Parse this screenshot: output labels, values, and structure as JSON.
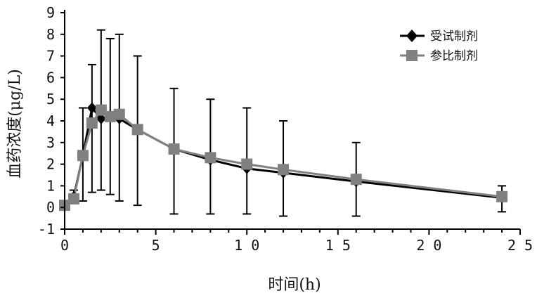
{
  "chart_data": {
    "type": "line",
    "xlabel": "时间(h)",
    "ylabel": "血药浓度(μg/L)",
    "xlim": [
      0,
      25
    ],
    "ylim": [
      -1,
      9
    ],
    "xticks": [
      0,
      5,
      10,
      15,
      20,
      25
    ],
    "yticks": [
      -1,
      0,
      1,
      2,
      3,
      4,
      5,
      6,
      7,
      8,
      9
    ],
    "grid": false,
    "legend_position": "top-right",
    "series": [
      {
        "name": "受试制剂",
        "color": "#000000",
        "marker": "diamond",
        "x": [
          0,
          0.5,
          1,
          1.5,
          2,
          2.5,
          3,
          4,
          6,
          8,
          10,
          12,
          16,
          24
        ],
        "y": [
          0.05,
          0.5,
          2.4,
          4.6,
          4.1,
          4.2,
          4.1,
          3.6,
          2.7,
          2.2,
          1.8,
          1.6,
          1.2,
          0.45
        ]
      },
      {
        "name": "参比制剂",
        "color": "#808080",
        "marker": "square",
        "x": [
          0,
          0.5,
          1,
          1.5,
          2,
          2.5,
          3,
          4,
          6,
          8,
          10,
          12,
          16,
          24
        ],
        "y": [
          0.1,
          0.4,
          2.4,
          3.9,
          4.5,
          4.2,
          4.3,
          3.6,
          2.7,
          2.3,
          2.0,
          1.75,
          1.3,
          0.5
        ]
      }
    ],
    "error_bars": {
      "x": [
        0,
        0.5,
        1,
        1.5,
        2,
        2.5,
        3,
        4,
        6,
        8,
        10,
        12,
        16,
        24
      ],
      "low": [
        0,
        0.2,
        0.3,
        0.7,
        0.8,
        0.6,
        0.3,
        0.1,
        -0.3,
        -0.3,
        -0.3,
        -0.4,
        -0.4,
        -0.2
      ],
      "high": [
        0.2,
        0.8,
        4.6,
        6.6,
        8.2,
        7.8,
        8.0,
        7.0,
        5.5,
        5.0,
        4.6,
        4.0,
        3.0,
        1.0
      ]
    }
  }
}
